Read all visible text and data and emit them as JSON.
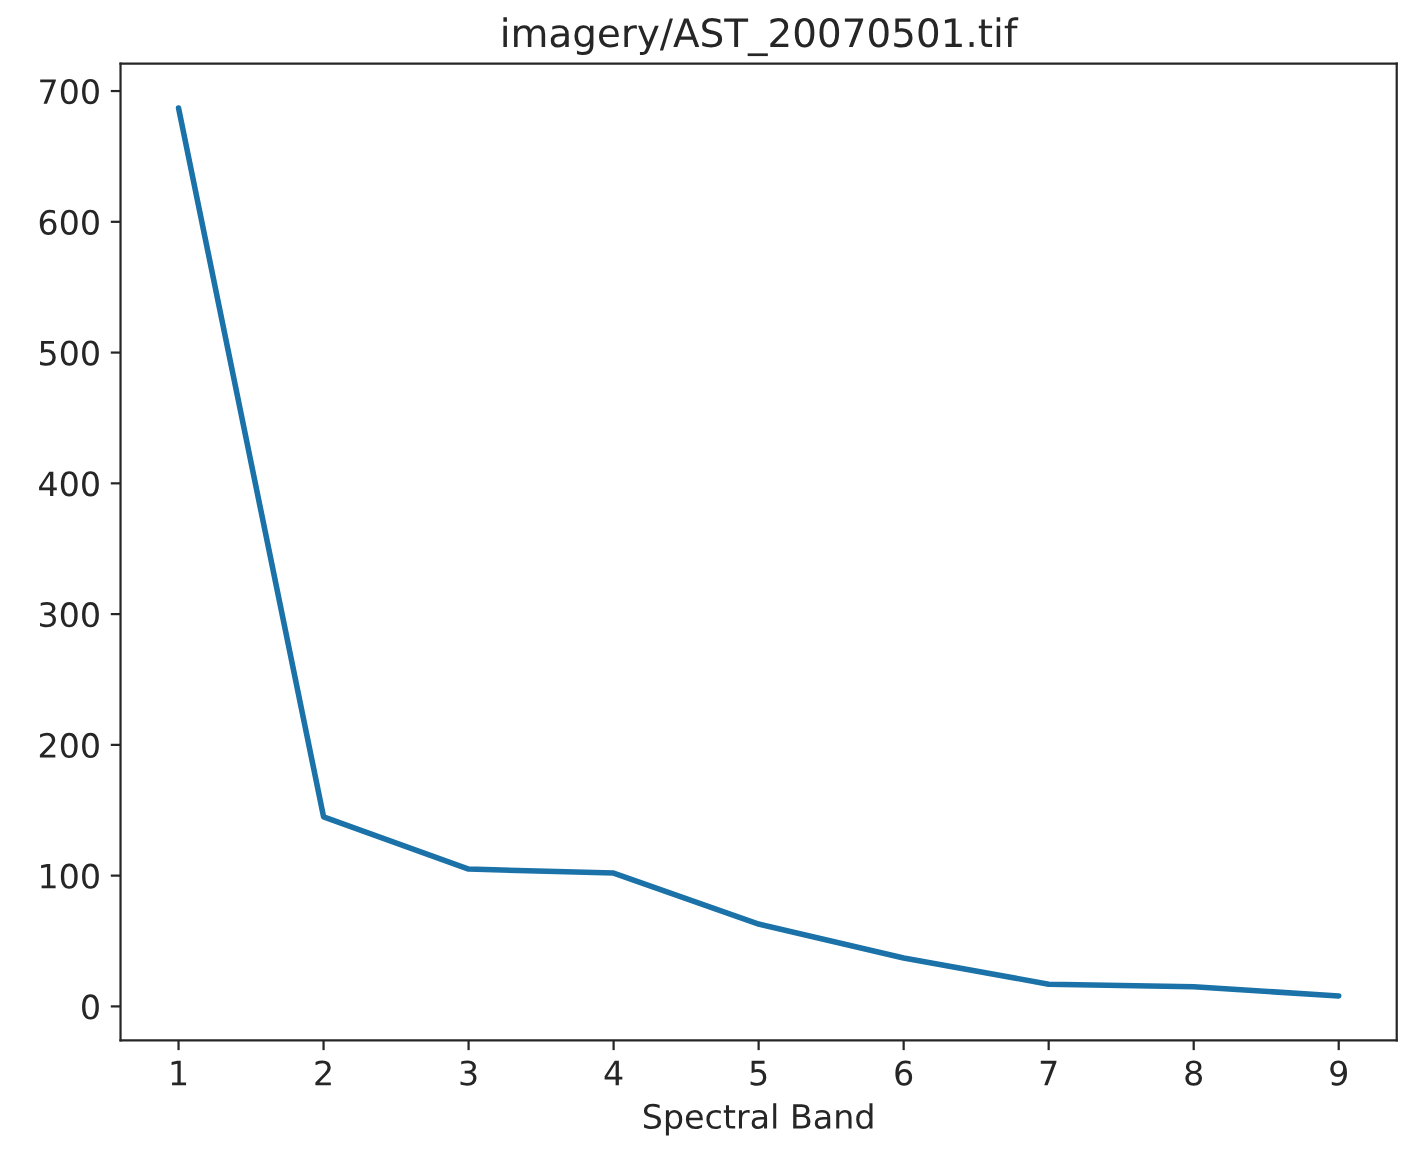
{
  "chart_data": {
    "type": "line",
    "title": "imagery/AST_20070501.tif",
    "xlabel": "Spectral Band",
    "x": [
      1,
      2,
      3,
      4,
      5,
      6,
      7,
      8,
      9
    ],
    "series": [
      {
        "color": "#1b72a8",
        "values": [
          687,
          145,
          105,
          102,
          63,
          37,
          17,
          15,
          8
        ]
      }
    ],
    "xlim": [
      0.6,
      9.4
    ],
    "xticks": [
      1,
      2,
      3,
      4,
      5,
      6,
      7,
      8,
      9
    ],
    "ylim": [
      -26,
      721
    ],
    "yticks": [
      0,
      100,
      200,
      300,
      400,
      500,
      600,
      700
    ],
    "grid": false,
    "marker": "none",
    "line_style": "solid"
  }
}
